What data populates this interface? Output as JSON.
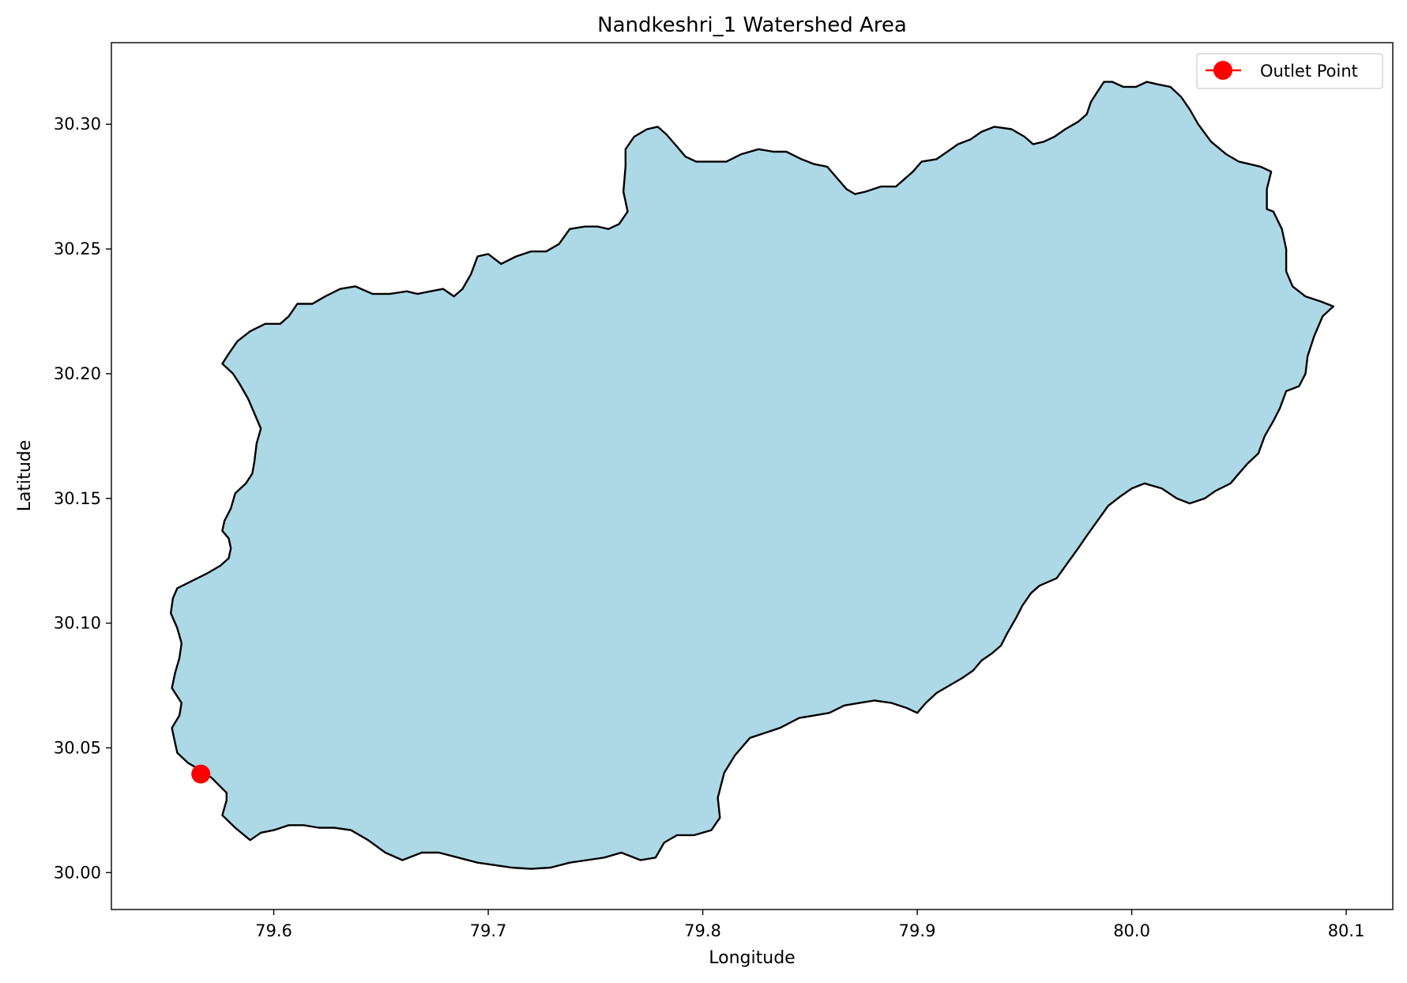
{
  "chart_data": {
    "type": "map",
    "title": "Nandkeshri_1 Watershed Area",
    "xlabel": "Longitude",
    "ylabel": "Latitude",
    "xlim": [
      79.5243,
      80.1217
    ],
    "ylim": [
      29.9852,
      30.3327
    ],
    "xticks": [
      {
        "value": 79.6,
        "label": "79.6"
      },
      {
        "value": 79.7,
        "label": "79.7"
      },
      {
        "value": 79.8,
        "label": "79.8"
      },
      {
        "value": 79.9,
        "label": "79.9"
      },
      {
        "value": 80.0,
        "label": "80.0"
      },
      {
        "value": 80.1,
        "label": "80.1"
      }
    ],
    "yticks": [
      {
        "value": 30.0,
        "label": "30.00"
      },
      {
        "value": 30.05,
        "label": "30.05"
      },
      {
        "value": 30.1,
        "label": "30.10"
      },
      {
        "value": 30.15,
        "label": "30.15"
      },
      {
        "value": 30.2,
        "label": "30.20"
      },
      {
        "value": 30.25,
        "label": "30.25"
      },
      {
        "value": 30.3,
        "label": "30.30"
      }
    ],
    "grid": false,
    "legend": {
      "placement": "top-right",
      "entries": [
        {
          "label": "Outlet Point",
          "color": "#ff0000",
          "marker": "circle-line"
        }
      ]
    },
    "watershed": {
      "fill": "#add8e6",
      "edge": "#000000",
      "boundary": [
        [
          79.554,
          30.052
        ],
        [
          79.5525,
          30.058
        ],
        [
          79.556,
          30.063
        ],
        [
          79.557,
          30.068
        ],
        [
          79.5525,
          30.074
        ],
        [
          79.554,
          30.08
        ],
        [
          79.556,
          30.086
        ],
        [
          79.557,
          30.092
        ],
        [
          79.555,
          30.098
        ],
        [
          79.552,
          30.104
        ],
        [
          79.553,
          30.11
        ],
        [
          79.555,
          30.114
        ],
        [
          79.562,
          30.117
        ],
        [
          79.569,
          30.12
        ],
        [
          79.575,
          30.123
        ],
        [
          79.579,
          30.126
        ],
        [
          79.58,
          30.13
        ],
        [
          79.579,
          30.134
        ],
        [
          79.576,
          30.137
        ],
        [
          79.577,
          30.141
        ],
        [
          79.58,
          30.146
        ],
        [
          79.582,
          30.152
        ],
        [
          79.587,
          30.156
        ],
        [
          79.59,
          30.16
        ],
        [
          79.591,
          30.165
        ],
        [
          79.592,
          30.172
        ],
        [
          79.594,
          30.178
        ],
        [
          79.591,
          30.184
        ],
        [
          79.588,
          30.19
        ],
        [
          79.584,
          30.196
        ],
        [
          79.581,
          30.2
        ],
        [
          79.576,
          30.204
        ],
        [
          79.579,
          30.208
        ],
        [
          79.583,
          30.213
        ],
        [
          79.589,
          30.217
        ],
        [
          79.596,
          30.22
        ],
        [
          79.603,
          30.22
        ],
        [
          79.607,
          30.223
        ],
        [
          79.611,
          30.228
        ],
        [
          79.618,
          30.228
        ],
        [
          79.624,
          30.231
        ],
        [
          79.631,
          30.234
        ],
        [
          79.638,
          30.235
        ],
        [
          79.646,
          30.232
        ],
        [
          79.654,
          30.232
        ],
        [
          79.662,
          30.233
        ],
        [
          79.667,
          30.232
        ],
        [
          79.673,
          30.233
        ],
        [
          79.679,
          30.234
        ],
        [
          79.684,
          30.231
        ],
        [
          79.688,
          30.234
        ],
        [
          79.692,
          30.24
        ],
        [
          79.695,
          30.247
        ],
        [
          79.7,
          30.248
        ],
        [
          79.706,
          30.244
        ],
        [
          79.713,
          30.247
        ],
        [
          79.72,
          30.249
        ],
        [
          79.727,
          30.249
        ],
        [
          79.733,
          30.252
        ],
        [
          79.738,
          30.258
        ],
        [
          79.745,
          30.259
        ],
        [
          79.751,
          30.259
        ],
        [
          79.756,
          30.258
        ],
        [
          79.761,
          30.26
        ],
        [
          79.765,
          30.265
        ],
        [
          79.763,
          30.273
        ],
        [
          79.764,
          30.283
        ],
        [
          79.764,
          30.29
        ],
        [
          79.768,
          30.295
        ],
        [
          79.774,
          30.298
        ],
        [
          79.779,
          30.299
        ],
        [
          79.783,
          30.296
        ],
        [
          79.788,
          30.291
        ],
        [
          79.792,
          30.287
        ],
        [
          79.797,
          30.285
        ],
        [
          79.804,
          30.285
        ],
        [
          79.811,
          30.285
        ],
        [
          79.818,
          30.288
        ],
        [
          79.826,
          30.29
        ],
        [
          79.833,
          30.289
        ],
        [
          79.839,
          30.289
        ],
        [
          79.846,
          30.286
        ],
        [
          79.852,
          30.284
        ],
        [
          79.858,
          30.283
        ],
        [
          79.862,
          30.279
        ],
        [
          79.867,
          30.274
        ],
        [
          79.871,
          30.272
        ],
        [
          79.876,
          30.273
        ],
        [
          79.883,
          30.275
        ],
        [
          79.89,
          30.275
        ],
        [
          79.894,
          30.278
        ],
        [
          79.898,
          30.281
        ],
        [
          79.902,
          30.285
        ],
        [
          79.909,
          30.286
        ],
        [
          79.914,
          30.289
        ],
        [
          79.919,
          30.292
        ],
        [
          79.925,
          30.294
        ],
        [
          79.93,
          30.297
        ],
        [
          79.936,
          30.299
        ],
        [
          79.944,
          30.298
        ],
        [
          79.95,
          30.295
        ],
        [
          79.954,
          30.292
        ],
        [
          79.959,
          30.293
        ],
        [
          79.964,
          30.295
        ],
        [
          79.969,
          30.298
        ],
        [
          79.975,
          30.301
        ],
        [
          79.979,
          30.304
        ],
        [
          79.981,
          30.309
        ],
        [
          79.984,
          30.313
        ],
        [
          79.987,
          30.317
        ],
        [
          79.991,
          30.317
        ],
        [
          79.996,
          30.315
        ],
        [
          80.002,
          30.315
        ],
        [
          80.007,
          30.317
        ],
        [
          80.012,
          30.316
        ],
        [
          80.018,
          30.315
        ],
        [
          80.023,
          30.311
        ],
        [
          80.027,
          30.306
        ],
        [
          80.031,
          30.3
        ],
        [
          80.037,
          30.293
        ],
        [
          80.044,
          30.288
        ],
        [
          80.05,
          30.285
        ],
        [
          80.055,
          30.284
        ],
        [
          80.06,
          30.283
        ],
        [
          80.065,
          30.281
        ],
        [
          80.063,
          30.274
        ],
        [
          80.063,
          30.266
        ],
        [
          80.066,
          30.265
        ],
        [
          80.07,
          30.258
        ],
        [
          80.072,
          30.25
        ],
        [
          80.072,
          30.241
        ],
        [
          80.075,
          30.235
        ],
        [
          80.081,
          30.231
        ],
        [
          80.088,
          30.229
        ],
        [
          80.094,
          30.227
        ],
        [
          80.089,
          30.223
        ],
        [
          80.085,
          30.215
        ],
        [
          80.082,
          30.207
        ],
        [
          80.081,
          30.2
        ],
        [
          80.078,
          30.195
        ],
        [
          80.072,
          30.193
        ],
        [
          80.069,
          30.186
        ],
        [
          80.066,
          30.181
        ],
        [
          80.062,
          30.175
        ],
        [
          80.059,
          30.168
        ],
        [
          80.054,
          30.164
        ],
        [
          80.05,
          30.16
        ],
        [
          80.046,
          30.156
        ],
        [
          80.039,
          30.153
        ],
        [
          80.034,
          30.15
        ],
        [
          80.027,
          30.148
        ],
        [
          80.021,
          30.15
        ],
        [
          80.014,
          30.154
        ],
        [
          80.006,
          30.156
        ],
        [
          80.0,
          30.154
        ],
        [
          79.995,
          30.151
        ],
        [
          79.989,
          30.147
        ],
        [
          79.984,
          30.141
        ],
        [
          79.979,
          30.135
        ],
        [
          79.975,
          30.13
        ],
        [
          79.97,
          30.124
        ],
        [
          79.965,
          30.118
        ],
        [
          79.957,
          30.115
        ],
        [
          79.953,
          30.112
        ],
        [
          79.949,
          30.107
        ],
        [
          79.946,
          30.102
        ],
        [
          79.942,
          30.096
        ],
        [
          79.939,
          30.091
        ],
        [
          79.935,
          30.088
        ],
        [
          79.93,
          30.085
        ],
        [
          79.926,
          30.081
        ],
        [
          79.921,
          30.078
        ],
        [
          79.915,
          30.075
        ],
        [
          79.909,
          30.072
        ],
        [
          79.904,
          30.068
        ],
        [
          79.9,
          30.064
        ],
        [
          79.895,
          30.066
        ],
        [
          79.888,
          30.068
        ],
        [
          79.88,
          30.069
        ],
        [
          79.873,
          30.068
        ],
        [
          79.866,
          30.067
        ],
        [
          79.859,
          30.064
        ],
        [
          79.852,
          30.063
        ],
        [
          79.845,
          30.062
        ],
        [
          79.836,
          30.058
        ],
        [
          79.829,
          30.056
        ],
        [
          79.822,
          30.054
        ],
        [
          79.815,
          30.047
        ],
        [
          79.81,
          30.04
        ],
        [
          79.807,
          30.03
        ],
        [
          79.808,
          30.022
        ],
        [
          79.804,
          30.017
        ],
        [
          79.796,
          30.015
        ],
        [
          79.788,
          30.015
        ],
        [
          79.782,
          30.012
        ],
        [
          79.778,
          30.006
        ],
        [
          79.771,
          30.005
        ],
        [
          79.762,
          30.008
        ],
        [
          79.754,
          30.006
        ],
        [
          79.746,
          30.005
        ],
        [
          79.738,
          30.004
        ],
        [
          79.729,
          30.002
        ],
        [
          79.72,
          30.0015
        ],
        [
          79.711,
          30.002
        ],
        [
          79.703,
          30.003
        ],
        [
          79.695,
          30.004
        ],
        [
          79.686,
          30.006
        ],
        [
          79.677,
          30.008
        ],
        [
          79.669,
          30.008
        ],
        [
          79.66,
          30.005
        ],
        [
          79.652,
          30.008
        ],
        [
          79.644,
          30.013
        ],
        [
          79.636,
          30.017
        ],
        [
          79.628,
          30.018
        ],
        [
          79.621,
          30.018
        ],
        [
          79.614,
          30.019
        ],
        [
          79.607,
          30.019
        ],
        [
          79.6,
          30.017
        ],
        [
          79.594,
          30.016
        ],
        [
          79.589,
          30.013
        ],
        [
          79.582,
          30.018
        ],
        [
          79.576,
          30.023
        ],
        [
          79.578,
          30.029
        ],
        [
          79.578,
          30.032
        ],
        [
          79.571,
          30.038
        ],
        [
          79.566,
          30.041
        ],
        [
          79.56,
          30.044
        ],
        [
          79.555,
          30.048
        ],
        [
          79.554,
          30.052
        ]
      ]
    },
    "outlet": {
      "label": "Outlet Point",
      "lon": 79.566,
      "lat": 30.0395,
      "color": "#ff0000"
    }
  }
}
